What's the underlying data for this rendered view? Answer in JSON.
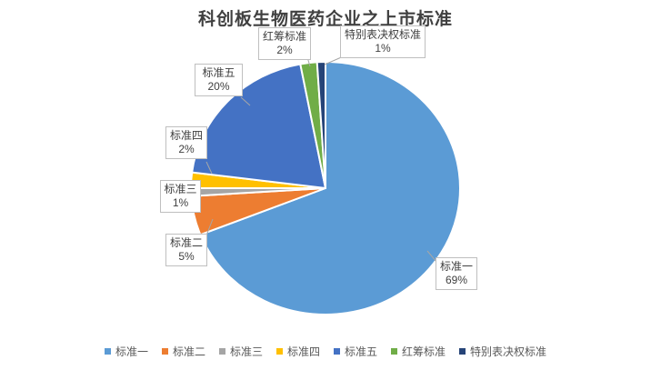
{
  "chart_data": {
    "type": "pie",
    "title": "科创板生物医药企业之上市标准",
    "unit": "percent",
    "start_angle_deg": 0,
    "direction": "clockwise",
    "legend_position": "bottom",
    "slices": [
      {
        "name": "标准一",
        "value": 69,
        "label": "69%",
        "color": "#5B9BD5"
      },
      {
        "name": "标准二",
        "value": 5,
        "label": "5%",
        "color": "#ED7D31"
      },
      {
        "name": "标准三",
        "value": 1,
        "label": "1%",
        "color": "#A5A5A5"
      },
      {
        "name": "标准四",
        "value": 2,
        "label": "2%",
        "color": "#FFC000"
      },
      {
        "name": "标准五",
        "value": 20,
        "label": "20%",
        "color": "#4472C4"
      },
      {
        "name": "红筹标准",
        "value": 2,
        "label": "2%",
        "color": "#70AD47"
      },
      {
        "name": "特别表决权标准",
        "value": 1,
        "label": "1%",
        "color": "#264478"
      }
    ]
  }
}
